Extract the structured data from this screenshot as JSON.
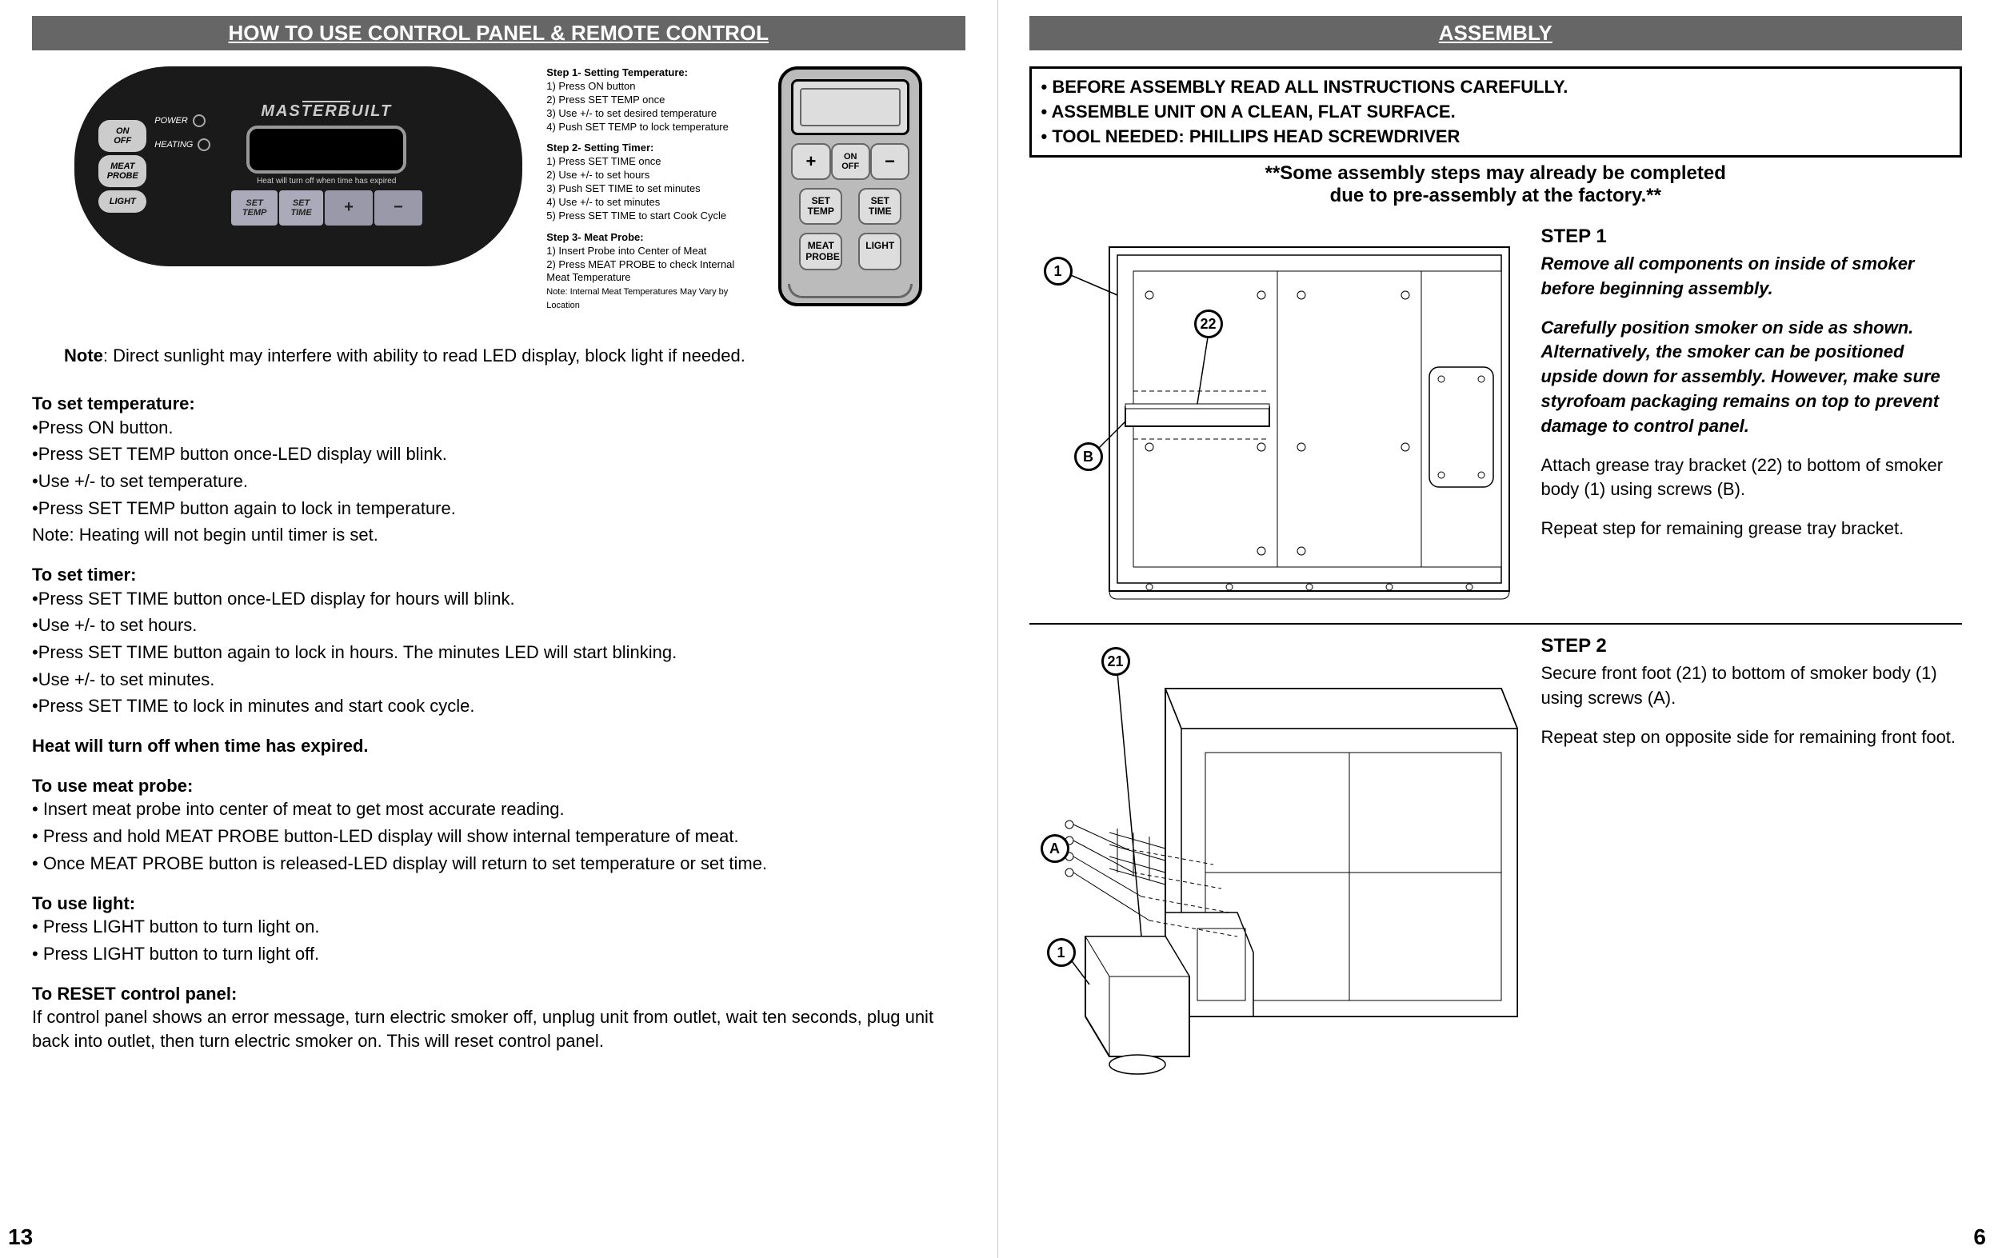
{
  "left": {
    "header": "HOW TO USE CONTROL PANEL & REMOTE CONTROL",
    "control_panel": {
      "side_buttons": [
        "ON\nOFF",
        "MEAT\nPROBE",
        "LIGHT"
      ],
      "indicators": [
        "POWER",
        "HEATING"
      ],
      "logo": "MASTERBUILT",
      "display_note": "Heat will turn off when time has expired",
      "bottom_buttons": [
        "SET\nTEMP",
        "SET\nTIME",
        "+",
        "−"
      ]
    },
    "panel_steps": {
      "s1_title": "Step 1- Setting Temperature:",
      "s1_lines": [
        "1) Press ON button",
        "2) Press SET TEMP once",
        "3) Use +/- to set desired temperature",
        "4) Push SET TEMP to lock temperature"
      ],
      "s2_title": "Step 2- Setting Timer:",
      "s2_lines": [
        "1) Press SET TIME once",
        "2) Use +/- to set hours",
        "3) Push SET TIME to set minutes",
        "4) Use +/- to set minutes",
        "5) Press SET TIME to start Cook Cycle"
      ],
      "s3_title": "Step 3- Meat Probe:",
      "s3_lines": [
        "1) Insert Probe into Center of Meat",
        "2) Press MEAT PROBE to check Internal Meat Temperature"
      ],
      "s3_note": "Note: Internal Meat Temperatures May Vary by Location"
    },
    "remote": {
      "row1": [
        "+",
        "ON\nOFF",
        "−"
      ],
      "row2": [
        "SET\nTEMP",
        "SET\nTIME"
      ],
      "row3": [
        "MEAT\nPROBE",
        "LIGHT"
      ]
    },
    "note_line_label": "Note",
    "note_line": ":  Direct sunlight may interfere with ability to read LED display, block light if needed.",
    "temp_title": "To set temperature:",
    "temp_lines": [
      "•Press ON button.",
      "•Press SET TEMP button once-LED display will blink.",
      "•Use +/- to set temperature.",
      "•Press SET TEMP button again to lock in temperature.",
      "Note:  Heating will not begin until timer is set."
    ],
    "timer_title": "To set timer:",
    "timer_lines": [
      "•Press SET TIME button once-LED display for hours will blink.",
      "•Use +/- to set hours.",
      "•Press SET TIME button again to lock in hours.  The minutes LED will start blinking.",
      "•Use +/- to set minutes.",
      "•Press SET TIME to lock in minutes and start cook cycle."
    ],
    "heat_off": "Heat will turn off when time has expired.",
    "probe_title": "To use meat probe:",
    "probe_lines": [
      "• Insert meat probe into center of meat to get most accurate reading.",
      "• Press and hold MEAT PROBE button-LED display will show internal temperature of meat.",
      "• Once MEAT PROBE  button is released-LED display will return to set temperature or set time."
    ],
    "light_title": "To use light:",
    "light_lines": [
      "• Press LIGHT button to turn light on.",
      "• Press LIGHT button to turn light off."
    ],
    "reset_title": "To RESET control panel:",
    "reset_text": "If control panel shows an error message, turn electric smoker off, unplug unit from outlet, wait ten seconds, plug unit back into outlet, then turn electric smoker on.  This will reset control panel.",
    "page_num": "13"
  },
  "right": {
    "header": "ASSEMBLY",
    "box_lines": [
      "• BEFORE ASSEMBLY READ ALL INSTRUCTIONS CAREFULLY.",
      "• ASSEMBLE UNIT ON A CLEAN, FLAT SURFACE.",
      "• TOOL NEEDED: PHILLIPS HEAD SCREWDRIVER"
    ],
    "pre_note1": "**Some assembly steps may already be completed",
    "pre_note2": "due to pre-assembly at the factory.**",
    "step1": {
      "title": "STEP 1",
      "em1": "Remove all components on inside of smoker before beginning assembly.",
      "em2": "Carefully position smoker on side as shown. Alternatively, the smoker can be positioned upside down for assembly. However, make sure styrofoam packaging remains on top to prevent damage to control panel.",
      "p1": "Attach grease tray bracket (22) to bottom of smoker body (1) using screws (B).",
      "p2": "Repeat step for remaining grease tray bracket.",
      "callouts": {
        "c1": "1",
        "c22": "22",
        "cB": "B"
      }
    },
    "step2": {
      "title": "STEP 2",
      "p1": "Secure front foot (21) to bottom of smoker body (1) using screws (A).",
      "p2": "Repeat step on opposite side for remaining front foot.",
      "callouts": {
        "c21": "21",
        "cA": "A",
        "c1": "1"
      }
    },
    "page_num": "6"
  },
  "colors": {
    "header_bg": "#666666",
    "header_fg": "#ffffff",
    "panel_bg": "#1a1a1a",
    "btn_bg": "#cccccc"
  }
}
